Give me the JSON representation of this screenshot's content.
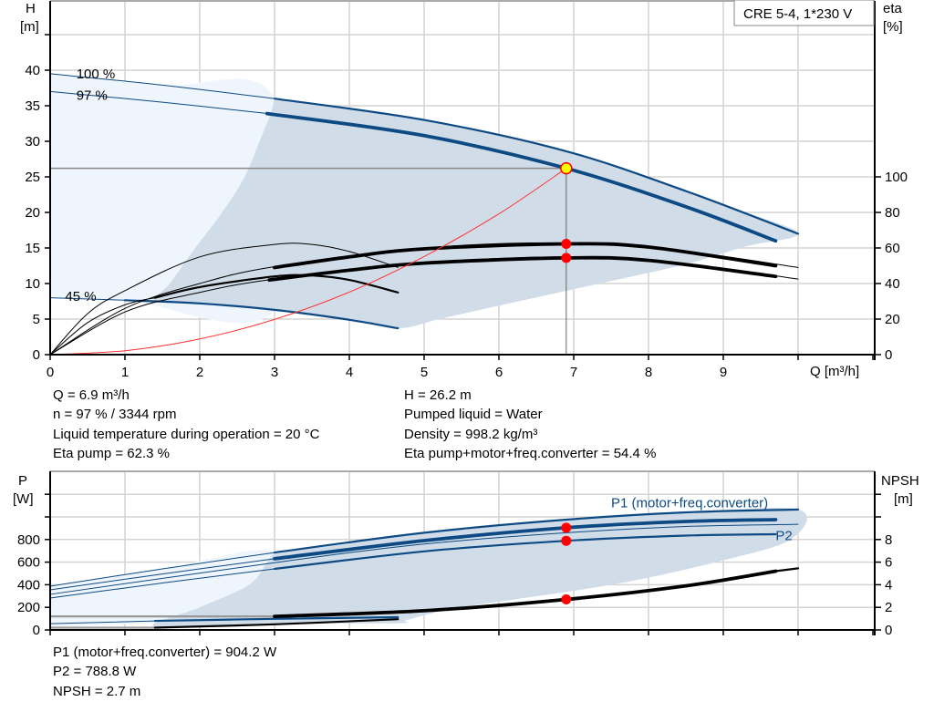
{
  "chart_data": [
    {
      "type": "line",
      "title": "CRE 5-4, 1*230 V",
      "xlabel": "Q [m³/h]",
      "ylabel_left": [
        "H",
        "[m]"
      ],
      "ylabel_right": [
        "eta",
        "[%]"
      ],
      "xlim": [
        0,
        10
      ],
      "x_ticks": [
        "0",
        "1",
        "2",
        "3",
        "4",
        "5",
        "6",
        "7",
        "8",
        "9"
      ],
      "ylim_left": [
        0,
        45
      ],
      "y_ticks_left": [
        "0",
        "5",
        "10",
        "15",
        "20",
        "25",
        "30",
        "35",
        "40"
      ],
      "ylim_right": [
        0,
        200
      ],
      "y_ticks_right": [
        "0",
        "20",
        "40",
        "60",
        "80",
        "100"
      ],
      "grid": true,
      "speed_labels": [
        {
          "text": "100 %",
          "q": 0.35,
          "h": 39.5
        },
        {
          "text": "97 %",
          "q": 0.35,
          "h": 36.5
        },
        {
          "text": "45 %",
          "q": 0.2,
          "h": 8.2
        }
      ],
      "regions": [
        {
          "name": "extended-range",
          "color": "#eef5fc",
          "points": [
            [
              0,
              39.5
            ],
            [
              1.5,
              37.9
            ],
            [
              3,
              36
            ],
            [
              3,
              6.3
            ],
            [
              1,
              7.65
            ],
            [
              0,
              8
            ]
          ]
        },
        {
          "name": "operating-range",
          "color": "#d0dce8",
          "points": [
            [
              3,
              36
            ],
            [
              4,
              34.6
            ],
            [
              5,
              33
            ],
            [
              6,
              31
            ],
            [
              6.9,
              28.6
            ],
            [
              7.7,
              26
            ],
            [
              8.5,
              23
            ],
            [
              9.3,
              20
            ],
            [
              10,
              17
            ],
            [
              9.3,
              15.2
            ],
            [
              8.6,
              13
            ],
            [
              8,
              11.5
            ],
            [
              7,
              9.2
            ],
            [
              6,
              6.9
            ],
            [
              5.2,
              5
            ],
            [
              4.65,
              3.7
            ],
            [
              4,
              4.9
            ],
            [
              3,
              6.3
            ],
            [
              2,
              7.2
            ],
            [
              1.4,
              7.55
            ],
            [
              1.6,
              10
            ],
            [
              1.94,
              15
            ],
            [
              2.3,
              20
            ],
            [
              2.6,
              25
            ],
            [
              2.8,
              30
            ],
            [
              2.95,
              34
            ],
            [
              3,
              36
            ]
          ]
        }
      ],
      "series": [
        {
          "axis": "H",
          "color": "#0d4a84",
          "weight": "hair",
          "points": [
            [
              0,
              39.5
            ],
            [
              1.5,
              37.9
            ],
            [
              3,
              36
            ]
          ]
        },
        {
          "axis": "H",
          "color": "#0d4a84",
          "weight": "medium",
          "points": [
            [
              3,
              36
            ],
            [
              5,
              33
            ],
            [
              6.9,
              28.6
            ],
            [
              8.5,
              23
            ],
            [
              10,
              17
            ]
          ]
        },
        {
          "axis": "H",
          "color": "#0d4a84",
          "weight": "hair",
          "points": [
            [
              0,
              37
            ],
            [
              1.5,
              35.5
            ],
            [
              3,
              33.8
            ]
          ]
        },
        {
          "axis": "H",
          "color": "#0d4a84",
          "weight": "thick",
          "points": [
            [
              2.9,
              33.9
            ],
            [
              5,
              30.8
            ],
            [
              6.9,
              26.2
            ],
            [
              8.5,
              20.8
            ],
            [
              9.7,
              16
            ]
          ]
        },
        {
          "axis": "H",
          "color": "#0d4a84",
          "weight": "hair",
          "points": [
            [
              0,
              8
            ],
            [
              1,
              7.65
            ]
          ]
        },
        {
          "axis": "H",
          "color": "#0d4a84",
          "weight": "medium",
          "points": [
            [
              1,
              7.65
            ],
            [
              2,
              7.2
            ],
            [
              3,
              6.3
            ],
            [
              4,
              4.9
            ],
            [
              4.65,
              3.7
            ]
          ]
        },
        {
          "axis": "eta",
          "color": "#000000",
          "weight": "hair",
          "points": [
            [
              0,
              0
            ],
            [
              0.5,
              23
            ],
            [
              1,
              36
            ],
            [
              2,
              55
            ],
            [
              3,
              62
            ],
            [
              3.5,
              62
            ],
            [
              4,
              58
            ],
            [
              4.65,
              49
            ]
          ]
        },
        {
          "axis": "eta",
          "color": "#000000",
          "weight": "hair",
          "points": [
            [
              0,
              0
            ],
            [
              0.5,
              18
            ],
            [
              1,
              28
            ],
            [
              1.4,
              32
            ]
          ]
        },
        {
          "axis": "eta",
          "color": "#000000",
          "weight": "medium",
          "points": [
            [
              1.4,
              32
            ],
            [
              2,
              38
            ],
            [
              3,
              44
            ],
            [
              3.5,
              44.5
            ],
            [
              4,
              42
            ],
            [
              4.65,
              35
            ]
          ]
        },
        {
          "axis": "eta",
          "color": "#000000",
          "weight": "hair",
          "points": [
            [
              0,
              0
            ],
            [
              1,
              26
            ],
            [
              2,
              40
            ],
            [
              3,
              49.5
            ],
            [
              5,
              60
            ],
            [
              6.9,
              62.8
            ],
            [
              8.5,
              58
            ],
            [
              10,
              49
            ]
          ]
        },
        {
          "axis": "eta",
          "color": "#000000",
          "weight": "hair",
          "points": [
            [
              0,
              0
            ],
            [
              1,
              24
            ],
            [
              2,
              35
            ],
            [
              3,
              42.5
            ],
            [
              5,
              51.5
            ],
            [
              6.9,
              55
            ],
            [
              8.5,
              51
            ],
            [
              10,
              42.5
            ]
          ]
        },
        {
          "axis": "eta",
          "color": "#000000",
          "weight": "thick",
          "points": [
            [
              3,
              49
            ],
            [
              4,
              55
            ],
            [
              5,
              59.5
            ],
            [
              6.9,
              62.3
            ],
            [
              8,
              60.5
            ],
            [
              9.7,
              50
            ]
          ]
        },
        {
          "axis": "eta",
          "color": "#000000",
          "weight": "thick",
          "points": [
            [
              2.93,
              42
            ],
            [
              4,
              47.5
            ],
            [
              5,
              51.5
            ],
            [
              6.9,
              54.4
            ],
            [
              8,
              53
            ],
            [
              9.7,
              44
            ]
          ]
        },
        {
          "axis": "H",
          "color": "#ff3333",
          "weight": "hair",
          "points": [
            [
              0,
              0
            ],
            [
              1,
              0.55
            ],
            [
              2,
              2.2
            ],
            [
              3,
              4.95
            ],
            [
              4,
              8.8
            ],
            [
              5,
              13.8
            ],
            [
              6,
              19.8
            ],
            [
              6.9,
              26.2
            ]
          ]
        }
      ],
      "duty_point": {
        "q": 6.9,
        "h": 26.2,
        "fill": "#ffff00",
        "stroke": "#ff0000"
      },
      "markers": [
        {
          "axis": "eta",
          "q": 6.9,
          "v": 62.3
        },
        {
          "axis": "eta",
          "q": 6.9,
          "v": 54.4
        }
      ]
    },
    {
      "type": "line",
      "xlim": [
        0,
        10
      ],
      "ylabel_left": [
        "P",
        "[W]"
      ],
      "ylabel_right": [
        "NPSH",
        "[m]"
      ],
      "ylim_left": [
        0,
        1400
      ],
      "y_ticks_left": [
        "0",
        "200",
        "400",
        "600",
        "800"
      ],
      "ylim_right": [
        0,
        14
      ],
      "y_ticks_right": [
        "0",
        "2",
        "4",
        "6",
        "8"
      ],
      "grid": true,
      "series_labels": [
        {
          "text": "P1 (motor+freq.converter)",
          "q": 7.5,
          "p": 1125,
          "color": "#0d4a84"
        },
        {
          "text": "P2",
          "q": 9.7,
          "p": 835,
          "color": "#0d4a84"
        }
      ],
      "regions": [
        {
          "name": "extended-range",
          "color": "#eef5fc",
          "points": [
            [
              0,
              395
            ],
            [
              1.5,
              540
            ],
            [
              3,
              690
            ],
            [
              3,
              110
            ],
            [
              1.5,
              60
            ],
            [
              0,
              30
            ]
          ]
        },
        {
          "name": "operating-range",
          "color": "#d0dce8",
          "points": [
            [
              3,
              690
            ],
            [
              5,
              860
            ],
            [
              6.9,
              976
            ],
            [
              8.5,
              1040
            ],
            [
              10,
              1065
            ],
            [
              9.9,
              800
            ],
            [
              8.9,
              600
            ],
            [
              7.5,
              400
            ],
            [
              5.5,
              200
            ],
            [
              4.78,
              90
            ],
            [
              4.65,
              60
            ],
            [
              3,
              60
            ],
            [
              1.4,
              30
            ],
            [
              2,
              200
            ],
            [
              2.66,
              400
            ],
            [
              2.9,
              600
            ],
            [
              3,
              690
            ]
          ]
        }
      ],
      "series": [
        {
          "axis": "P",
          "color": "#0d4a84",
          "weight": "hair",
          "points": [
            [
              0,
              387
            ],
            [
              1.5,
              540
            ],
            [
              3,
              685
            ]
          ]
        },
        {
          "axis": "P",
          "color": "#0d4a84",
          "weight": "medium",
          "points": [
            [
              3,
              685
            ],
            [
              5,
              860
            ],
            [
              6.9,
              976
            ],
            [
              8.5,
              1040
            ],
            [
              10,
              1065
            ]
          ]
        },
        {
          "axis": "P",
          "color": "#0d4a84",
          "weight": "hair",
          "points": [
            [
              0,
              355
            ],
            [
              1.5,
              495
            ],
            [
              3,
              630
            ]
          ]
        },
        {
          "axis": "P",
          "color": "#0d4a84",
          "weight": "thick",
          "points": [
            [
              3,
              630
            ],
            [
              5,
              790
            ],
            [
              6.9,
              904.2
            ],
            [
              8.5,
              960
            ],
            [
              9.7,
              976
            ]
          ]
        },
        {
          "axis": "P",
          "color": "#0d4a84",
          "weight": "hair",
          "points": [
            [
              0,
              315
            ],
            [
              3,
              595
            ],
            [
              5,
              760
            ],
            [
              6.9,
              860
            ],
            [
              8.5,
              915
            ],
            [
              10,
              935
            ]
          ]
        },
        {
          "axis": "P",
          "color": "#0d4a84",
          "weight": "hair",
          "points": [
            [
              0,
              282
            ],
            [
              1.5,
              415
            ],
            [
              3,
              540
            ]
          ]
        },
        {
          "axis": "P",
          "color": "#0d4a84",
          "weight": "medium",
          "points": [
            [
              3,
              540
            ],
            [
              5,
              695
            ],
            [
              6.9,
              788.8
            ],
            [
              8.5,
              835
            ],
            [
              9.7,
              847
            ]
          ]
        },
        {
          "axis": "P",
          "color": "#0d4a84",
          "weight": "hair",
          "points": [
            [
              0,
              56
            ],
            [
              1.4,
              80
            ]
          ]
        },
        {
          "axis": "P",
          "color": "#0d4a84",
          "weight": "medium",
          "points": [
            [
              1.4,
              80
            ],
            [
              3,
              98
            ],
            [
              4.65,
              113
            ]
          ]
        },
        {
          "axis": "NPSH",
          "color": "#999999",
          "weight": "medium",
          "points": [
            [
              0,
              1.2
            ],
            [
              3,
              1.2
            ]
          ]
        },
        {
          "axis": "NPSH",
          "color": "#000000",
          "weight": "thick",
          "points": [
            [
              3,
              1.2
            ],
            [
              5,
              1.7
            ],
            [
              6.9,
              2.7
            ],
            [
              8.5,
              3.9
            ],
            [
              9.7,
              5.2
            ]
          ]
        },
        {
          "axis": "NPSH",
          "color": "#000000",
          "weight": "medium",
          "points": [
            [
              9.7,
              5.2
            ],
            [
              10,
              5.45
            ]
          ]
        },
        {
          "axis": "NPSH",
          "color": "#999999",
          "weight": "medium",
          "points": [
            [
              0,
              0.2
            ],
            [
              1.4,
              0.2
            ]
          ]
        },
        {
          "axis": "NPSH",
          "color": "#000000",
          "weight": "medium",
          "points": [
            [
              1.4,
              0.2
            ],
            [
              3,
              0.5
            ],
            [
              4.65,
              0.95
            ]
          ]
        }
      ],
      "markers": [
        {
          "axis": "P",
          "q": 6.9,
          "v": 904.2
        },
        {
          "axis": "P",
          "q": 6.9,
          "v": 788.8
        },
        {
          "axis": "NPSH",
          "q": 6.9,
          "v": 2.7
        }
      ]
    }
  ],
  "info_top": {
    "left": [
      "Q = 6.9 m³/h",
      "n = 97 % / 3344 rpm",
      "Liquid temperature during operation = 20 °C",
      "Eta pump = 62.3 %"
    ],
    "right": [
      "H = 26.2 m",
      "Pumped liquid = Water",
      "Density = 998.2 kg/m³",
      "Eta pump+motor+freq.converter = 54.4 %"
    ]
  },
  "info_bottom": [
    "P1 (motor+freq.converter) = 904.2 W",
    "P2 = 788.8 W",
    "NPSH = 2.7 m"
  ]
}
